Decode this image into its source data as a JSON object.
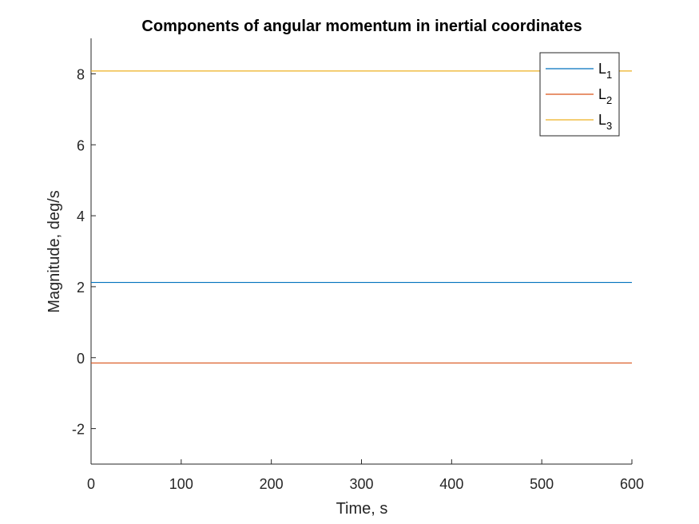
{
  "chart_data": {
    "type": "line",
    "title": "Components of angular momentum in inertial coordinates",
    "xlabel": "Time, s",
    "ylabel": "Magnitude, deg/s",
    "xlim": [
      0,
      600
    ],
    "ylim": [
      -3,
      9
    ],
    "xticks": [
      0,
      100,
      200,
      300,
      400,
      500,
      600
    ],
    "yticks": [
      -2,
      0,
      2,
      4,
      6,
      8
    ],
    "grid": false,
    "legend_position": "top-right",
    "series": [
      {
        "name": "L",
        "subscript": "1",
        "color": "#0072BD",
        "x": [
          0,
          600
        ],
        "y": [
          2.12,
          2.12
        ]
      },
      {
        "name": "L",
        "subscript": "2",
        "color": "#D95319",
        "x": [
          0,
          600
        ],
        "y": [
          -0.15,
          -0.15
        ]
      },
      {
        "name": "L",
        "subscript": "3",
        "color": "#EDB120",
        "x": [
          0,
          600
        ],
        "y": [
          8.08,
          8.08
        ]
      }
    ]
  }
}
